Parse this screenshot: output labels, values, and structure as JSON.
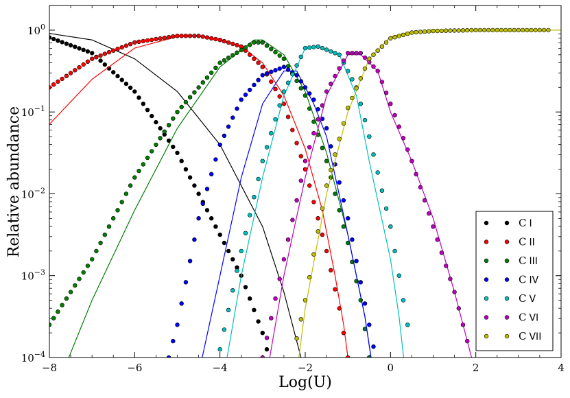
{
  "chart_data": {
    "type": "line",
    "xlabel": "Log(U)",
    "ylabel": "Relative abundance",
    "xlim": [
      -8,
      4
    ],
    "ylim": [
      0.0001,
      2
    ],
    "yscale": "log",
    "x_ticks": [
      {
        "value": -8,
        "label": "−8"
      },
      {
        "value": -6,
        "label": "−6"
      },
      {
        "value": -4,
        "label": "−4"
      },
      {
        "value": -2,
        "label": "−2"
      },
      {
        "value": 0,
        "label": "0"
      },
      {
        "value": 2,
        "label": "2"
      },
      {
        "value": 4,
        "label": "4"
      }
    ],
    "y_ticks": [
      {
        "value": 1,
        "base": "10",
        "exp": "0"
      },
      {
        "value": 0.1,
        "base": "10",
        "exp": "−1"
      },
      {
        "value": 0.01,
        "base": "10",
        "exp": "−2"
      },
      {
        "value": 0.001,
        "base": "10",
        "exp": "−3"
      },
      {
        "value": 0.0001,
        "base": "10",
        "exp": "−4"
      }
    ],
    "grid": false,
    "legend_position": "bottom-right",
    "series": [
      {
        "name": "C I",
        "ion_base": "C",
        "ion_stage": "I",
        "color": "#000000",
        "curve": [
          [
            -8,
            -0.04
          ],
          [
            -7,
            -0.12
          ],
          [
            -6,
            -0.35
          ],
          [
            -5,
            -0.75
          ],
          [
            -4,
            -1.4
          ],
          [
            -3,
            -2.4
          ],
          [
            -2.5,
            -3.2
          ],
          [
            -2.2,
            -3.8
          ],
          [
            -2.0,
            -4.2
          ]
        ],
        "points": [
          [
            -8,
            -0.09
          ],
          [
            -7,
            -0.28
          ],
          [
            -6,
            -0.75
          ],
          [
            -5,
            -1.5
          ],
          [
            -4,
            -2.5
          ],
          [
            -3.5,
            -3.0
          ],
          [
            -3,
            -3.7
          ],
          [
            -2.8,
            -4.1
          ]
        ]
      },
      {
        "name": "C II",
        "ion_base": "C",
        "ion_stage": "II",
        "color": "#ff0000",
        "curve": [
          [
            -8,
            -1.15
          ],
          [
            -7,
            -0.6
          ],
          [
            -6,
            -0.22
          ],
          [
            -5,
            -0.08
          ],
          [
            -4.5,
            -0.07
          ],
          [
            -4,
            -0.11
          ],
          [
            -3.5,
            -0.2
          ],
          [
            -3,
            -0.4
          ],
          [
            -2.5,
            -0.8
          ],
          [
            -2,
            -1.45
          ],
          [
            -1.6,
            -2.2
          ],
          [
            -1.3,
            -3.0
          ],
          [
            -1.1,
            -3.6
          ],
          [
            -0.95,
            -4.2
          ]
        ],
        "points": [
          [
            -8,
            -0.7
          ],
          [
            -7,
            -0.35
          ],
          [
            -6,
            -0.15
          ],
          [
            -5,
            -0.07
          ],
          [
            -4.5,
            -0.07
          ],
          [
            -4,
            -0.12
          ],
          [
            -3.5,
            -0.2
          ],
          [
            -3,
            -0.45
          ],
          [
            -2.5,
            -0.9
          ],
          [
            -2,
            -1.7
          ],
          [
            -1.5,
            -2.7
          ],
          [
            -1.2,
            -3.4
          ],
          [
            -1.0,
            -4.0
          ]
        ]
      },
      {
        "name": "C III",
        "ion_base": "C",
        "ion_stage": "III",
        "color": "#007f00",
        "curve": [
          [
            -7.7,
            -4.2
          ],
          [
            -7,
            -3.3
          ],
          [
            -6,
            -2.2
          ],
          [
            -5,
            -1.2
          ],
          [
            -4,
            -0.45
          ],
          [
            -3.2,
            -0.12
          ],
          [
            -3,
            -0.12
          ],
          [
            -2.5,
            -0.3
          ],
          [
            -2,
            -0.75
          ],
          [
            -1.5,
            -1.5
          ],
          [
            -1,
            -2.5
          ],
          [
            -0.6,
            -3.5
          ],
          [
            -0.4,
            -4.2
          ]
        ],
        "points": [
          [
            -8,
            -3.6
          ],
          [
            -7,
            -2.8
          ],
          [
            -6,
            -1.8
          ],
          [
            -5,
            -1.0
          ],
          [
            -4,
            -0.4
          ],
          [
            -3.2,
            -0.15
          ],
          [
            -3,
            -0.15
          ],
          [
            -2.5,
            -0.35
          ],
          [
            -2,
            -0.8
          ],
          [
            -1.5,
            -1.6
          ],
          [
            -1,
            -2.6
          ],
          [
            -0.7,
            -3.3
          ],
          [
            -0.5,
            -4.0
          ]
        ]
      },
      {
        "name": "C IV",
        "ion_base": "C",
        "ion_stage": "IV",
        "color": "#0000ff",
        "curve": [
          [
            -4.5,
            -4.2
          ],
          [
            -4,
            -3.0
          ],
          [
            -3.5,
            -1.8
          ],
          [
            -3,
            -0.9
          ],
          [
            -2.5,
            -0.5
          ],
          [
            -2.2,
            -0.5
          ],
          [
            -1.8,
            -0.9
          ],
          [
            -1.5,
            -1.3
          ],
          [
            -1,
            -2.5
          ],
          [
            -0.6,
            -3.5
          ],
          [
            -0.4,
            -4.2
          ]
        ],
        "points": [
          [
            -5.2,
            -4.0
          ],
          [
            -5,
            -3.6
          ],
          [
            -4.5,
            -2.3
          ],
          [
            -4,
            -1.4
          ],
          [
            -3.5,
            -0.85
          ],
          [
            -3,
            -0.55
          ],
          [
            -2.5,
            -0.45
          ],
          [
            -2.2,
            -0.55
          ],
          [
            -1.8,
            -0.85
          ],
          [
            -1.5,
            -1.2
          ],
          [
            -1,
            -2.3
          ],
          [
            -0.5,
            -3.6
          ],
          [
            -0.35,
            -4.0
          ]
        ]
      },
      {
        "name": "C V",
        "ion_base": "C",
        "ion_stage": "V",
        "color": "#00bfbf",
        "curve": [
          [
            -3.9,
            -4.2
          ],
          [
            -3.5,
            -3.0
          ],
          [
            -3,
            -1.8
          ],
          [
            -2.5,
            -0.8
          ],
          [
            -2,
            -0.22
          ],
          [
            -1.7,
            -0.2
          ],
          [
            -1.2,
            -0.3
          ],
          [
            -0.8,
            -0.8
          ],
          [
            -0.5,
            -1.6
          ],
          [
            0,
            -2.8
          ],
          [
            0.2,
            -3.5
          ],
          [
            0.35,
            -4.2
          ]
        ],
        "points": [
          [
            -4.0,
            -3.9
          ],
          [
            -3.5,
            -2.7
          ],
          [
            -3,
            -1.6
          ],
          [
            -2.5,
            -0.75
          ],
          [
            -2,
            -0.22
          ],
          [
            -1.7,
            -0.2
          ],
          [
            -1.2,
            -0.3
          ],
          [
            -0.8,
            -0.7
          ],
          [
            -0.5,
            -1.3
          ],
          [
            0,
            -2.4
          ],
          [
            0.4,
            -3.6
          ],
          [
            0.5,
            -4.0
          ]
        ]
      },
      {
        "name": "C VI",
        "ion_base": "C",
        "ion_stage": "VI",
        "color": "#bf00bf",
        "curve": [
          [
            -2.9,
            -4.2
          ],
          [
            -2.5,
            -3.0
          ],
          [
            -2,
            -1.8
          ],
          [
            -1.5,
            -0.8
          ],
          [
            -1,
            -0.3
          ],
          [
            -0.7,
            -0.3
          ],
          [
            -0.3,
            -0.5
          ],
          [
            0,
            -1.0
          ],
          [
            0.5,
            -1.6
          ],
          [
            1,
            -2.3
          ],
          [
            1.5,
            -3.2
          ],
          [
            1.9,
            -4.0
          ]
        ],
        "points": [
          [
            -3.0,
            -4.0
          ],
          [
            -2.5,
            -2.8
          ],
          [
            -2,
            -1.6
          ],
          [
            -1.5,
            -0.75
          ],
          [
            -1,
            -0.28
          ],
          [
            -0.7,
            -0.28
          ],
          [
            -0.3,
            -0.5
          ],
          [
            0,
            -0.9
          ],
          [
            0.5,
            -1.6
          ],
          [
            1,
            -2.4
          ],
          [
            1.5,
            -3.2
          ],
          [
            1.9,
            -4.0
          ]
        ]
      },
      {
        "name": "C VII",
        "ion_base": "C",
        "ion_stage": "VII",
        "color": "#bfbf00",
        "curve": [
          [
            -2.2,
            -4.2
          ],
          [
            -2,
            -3.4
          ],
          [
            -1.5,
            -2.0
          ],
          [
            -1,
            -1.0
          ],
          [
            -0.5,
            -0.35
          ],
          [
            0,
            -0.08
          ],
          [
            0.5,
            -0.02
          ],
          [
            1,
            -0.01
          ],
          [
            2,
            0
          ],
          [
            3,
            0
          ],
          [
            4,
            0
          ]
        ],
        "points": [
          [
            -2.3,
            -4.0
          ],
          [
            -2,
            -3.3
          ],
          [
            -1.5,
            -1.9
          ],
          [
            -1,
            -0.95
          ],
          [
            -0.5,
            -0.35
          ],
          [
            0,
            -0.1
          ],
          [
            0.5,
            -0.03
          ],
          [
            1,
            -0.01
          ],
          [
            2,
            0
          ],
          [
            3,
            0
          ],
          [
            3.75,
            0
          ]
        ]
      }
    ]
  }
}
